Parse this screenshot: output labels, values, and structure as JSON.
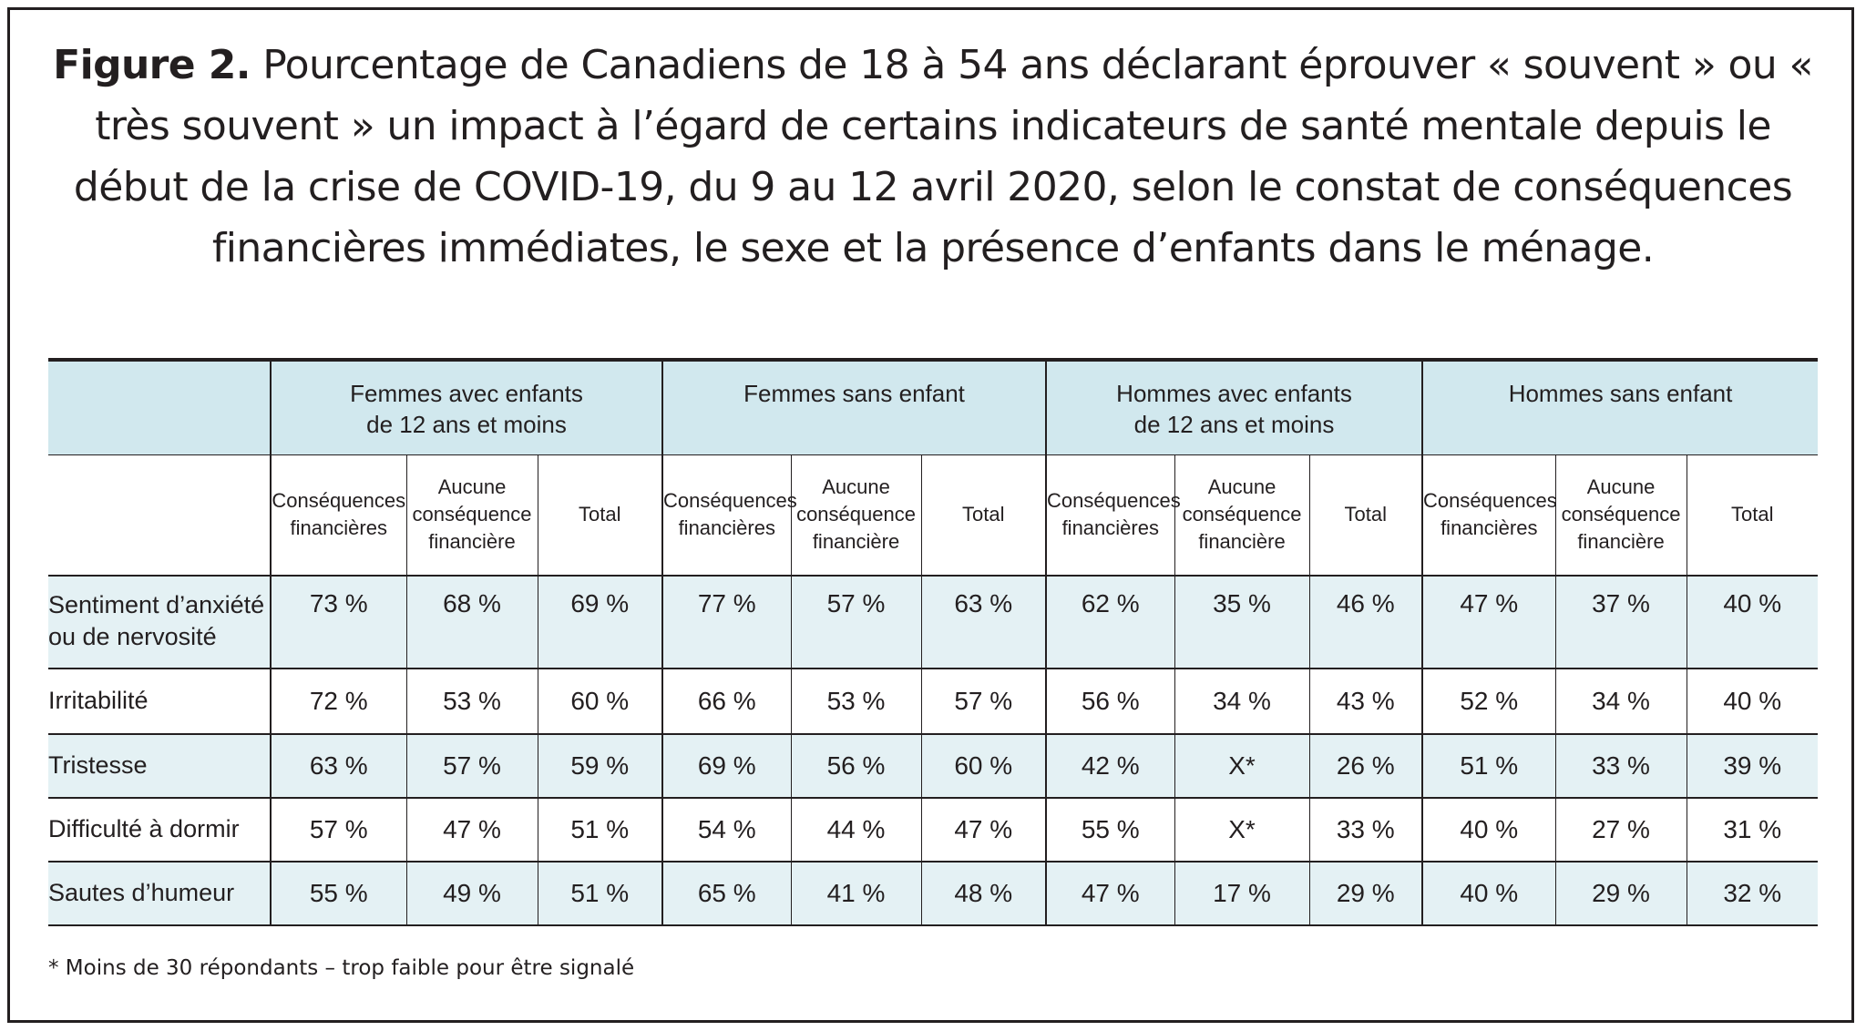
{
  "figure": {
    "label": "Figure 2.",
    "title": "Pourcentage de Canadiens de 18 à 54 ans déclarant éprouver « souvent » ou « très souvent » un impact à l’égard de certains indicateurs de santé mentale depuis le début de la crise de COVID-19, du 9 au 12 avril 2020, selon le constat de conséquences financières immédiates, le sexe et la présence d’enfants dans le ménage."
  },
  "table": {
    "groups": [
      {
        "line1": "Femmes avec enfants",
        "line2": "de 12 ans et moins"
      },
      {
        "line1": "Femmes sans enfant",
        "line2": ""
      },
      {
        "line1": "Hommes avec enfants",
        "line2": "de 12 ans et moins"
      },
      {
        "line1": "Hommes sans enfant",
        "line2": ""
      }
    ],
    "subheaders": {
      "consequences": {
        "line1": "Conséquences",
        "line2": "financières",
        "line3": ""
      },
      "aucune": {
        "line1": "Aucune",
        "line2": "conséquence",
        "line3": "financière"
      },
      "total": "Total"
    },
    "rows": [
      {
        "label1": "Sentiment d’anxiété",
        "label2": "ou de nervosité",
        "cells": [
          "73 %",
          "68 %",
          "69 %",
          "77 %",
          "57 %",
          "63 %",
          "62 %",
          "35 %",
          "46 %",
          "47 %",
          "37 %",
          "40 %"
        ]
      },
      {
        "label1": "Irritabilité",
        "label2": "",
        "cells": [
          "72 %",
          "53 %",
          "60 %",
          "66 %",
          "53 %",
          "57 %",
          "56 %",
          "34 %",
          "43 %",
          "52 %",
          "34 %",
          "40 %"
        ]
      },
      {
        "label1": "Tristesse",
        "label2": "",
        "cells": [
          "63 %",
          "57 %",
          "59 %",
          "69 %",
          "56 %",
          "60 %",
          "42 %",
          "X*",
          "26 %",
          "51 %",
          "33 %",
          "39 %"
        ]
      },
      {
        "label1": "Difficulté à dormir",
        "label2": "",
        "cells": [
          "57 %",
          "47 %",
          "51 %",
          "54 %",
          "44 %",
          "47 %",
          "55 %",
          "X*",
          "33 %",
          "40 %",
          "27 %",
          "31 %"
        ]
      },
      {
        "label1": "Sautes d’humeur",
        "label2": "",
        "cells": [
          "55 %",
          "49 %",
          "51 %",
          "65 %",
          "41 %",
          "48 %",
          "47 %",
          "17 %",
          "29 %",
          "40 %",
          "29 %",
          "32 %"
        ]
      }
    ]
  },
  "footnote": "* Moins de 30 répondants – trop faible pour être signalé",
  "colors": {
    "header_band": "#d1e8ee",
    "row_shade": "#e4f1f4",
    "text": "#231f20"
  }
}
